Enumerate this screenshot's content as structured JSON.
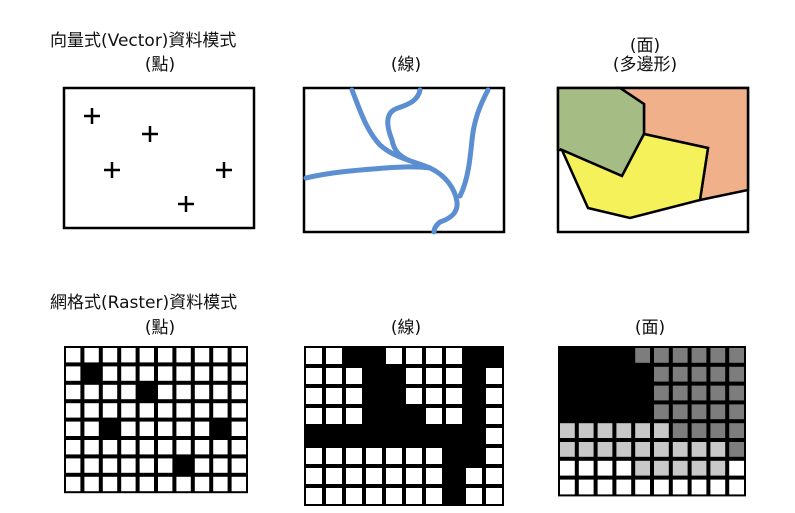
{
  "vector": {
    "title": "向量式(Vector)資料模式",
    "point_label": "(點)",
    "line_label": "(線)",
    "polygon_label_1": "(面)",
    "polygon_label_2": "(多邊形)"
  },
  "raster": {
    "title": "網格式(Raster)資料模式",
    "point_label": "(點)",
    "line_label": "(線)",
    "polygon_label": "(面)"
  },
  "colors": {
    "river_blue": "#5b8fd1",
    "green_polygon": "#a6bc85",
    "orange_polygon": "#f0b08a",
    "yellow_polygon": "#f5f15a",
    "grid_black": "#000000",
    "grid_dark_gray": "#7d7d7d",
    "grid_light_gray": "#c8c8c8"
  },
  "raster_grids": {
    "point": [
      "0000000000",
      "0100000000",
      "0000100000",
      "0000000000",
      "0010000010",
      "0000000000",
      "0000001000",
      "0000000000"
    ],
    "line": [
      "0011000011",
      "0001100010",
      "0001100010",
      "0001110010",
      "1111111110",
      "0000000110",
      "0000000100",
      "0000000100"
    ],
    "polygon": [
      "1111222222",
      "1111122222",
      "1111122222",
      "1111122222",
      "3333332222",
      "3333333332",
      "0000333330",
      "0000000000"
    ]
  }
}
